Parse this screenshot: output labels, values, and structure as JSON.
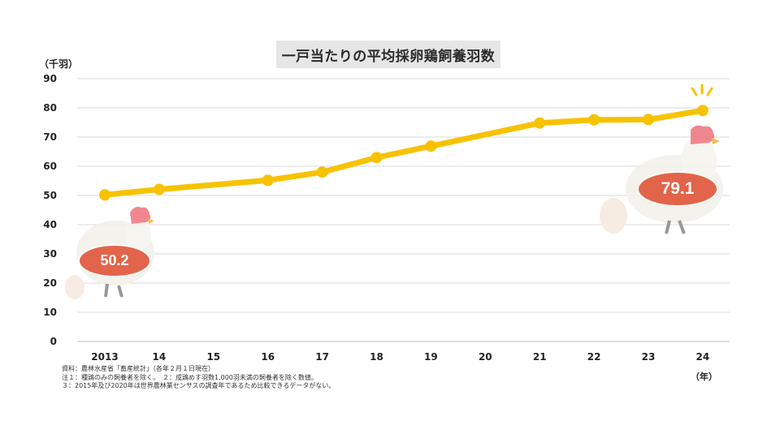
{
  "title": "一戸当たりの平均採卵鶏飼養羽数",
  "y_unit_label": "（千羽）",
  "x_unit_label": "（年）",
  "notes": [
    "資料：農林水産省「畜産統計」（各年２月１日現在）",
    "注１：種鶏のみの飼養者を除く。　２：成鶏めす羽数1,000羽未満の飼養者を除く数値。",
    "３：2015年及び2020年は世界農林業センサスの調査年であるため比較できるデータがない。"
  ],
  "callouts": {
    "start": "50.2",
    "end": "79.1"
  },
  "colors": {
    "line": "#f7c200",
    "grid": "#d9d9d9",
    "callout": "#e2644a",
    "title_bg": "#e6e6e6"
  },
  "icons": [
    "chicken-icon-left",
    "egg-icon-left",
    "chicken-icon-right",
    "egg-icon-right",
    "sparkle-icon"
  ],
  "chart_data": {
    "type": "line",
    "title": "一戸当たりの平均採卵鶏飼養羽数",
    "categories": [
      "2013",
      "14",
      "15",
      "16",
      "17",
      "18",
      "19",
      "20",
      "21",
      "22",
      "23",
      "24"
    ],
    "ylim": [
      0,
      90
    ],
    "yticks": [
      0,
      10,
      20,
      30,
      40,
      50,
      60,
      70,
      80,
      90
    ],
    "grid": true,
    "series": [
      {
        "values": [
          50.2,
          52.1,
          null,
          55.2,
          58.0,
          63.0,
          66.9,
          null,
          74.8,
          75.9,
          76.0,
          79.1
        ]
      }
    ]
  }
}
